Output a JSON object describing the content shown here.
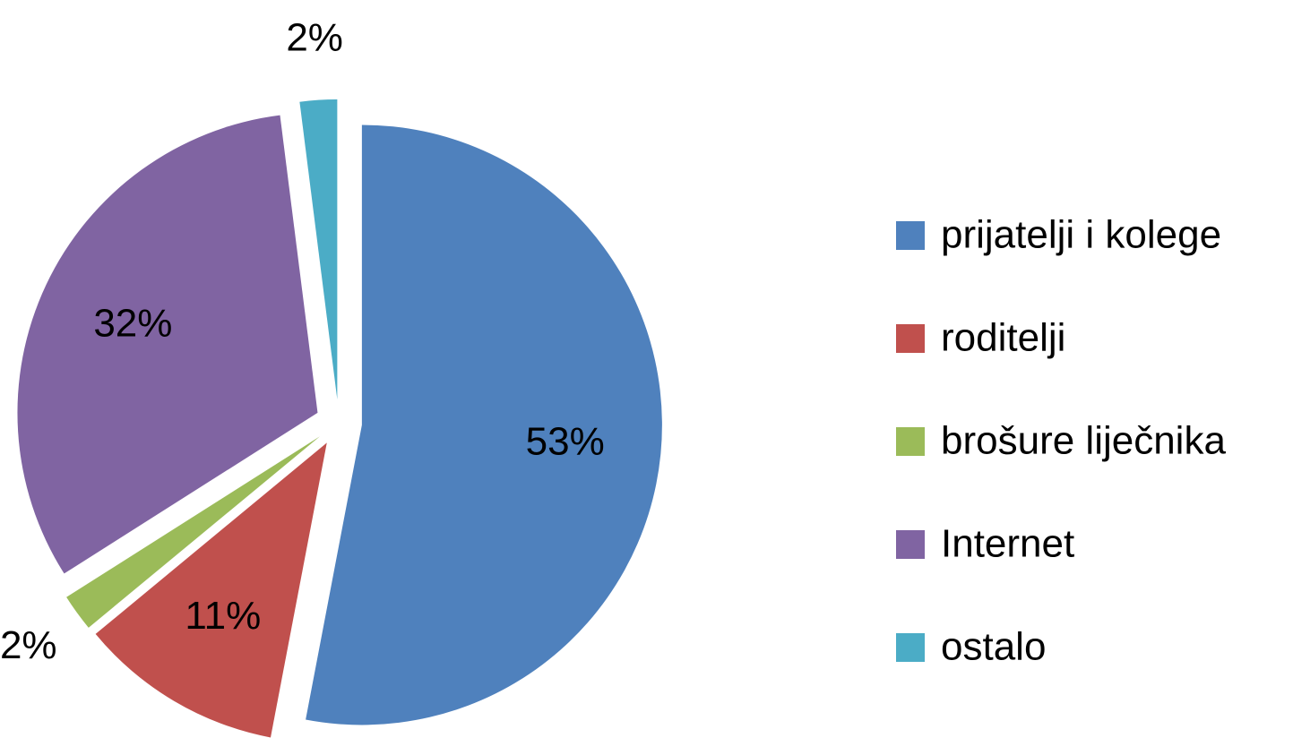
{
  "chart_data": {
    "type": "pie",
    "categories": [
      "prijatelji i kolege",
      "roditelji",
      "brošure liječnika",
      "Internet",
      "ostalo"
    ],
    "values": [
      53,
      11,
      2,
      32,
      2
    ],
    "value_labels": [
      "53%",
      "11%",
      "2%",
      "32%",
      "2%"
    ],
    "colors": [
      "#4f81bd",
      "#c0504d",
      "#9bbb59",
      "#8064a2",
      "#4bacc6"
    ],
    "legend": "right"
  }
}
